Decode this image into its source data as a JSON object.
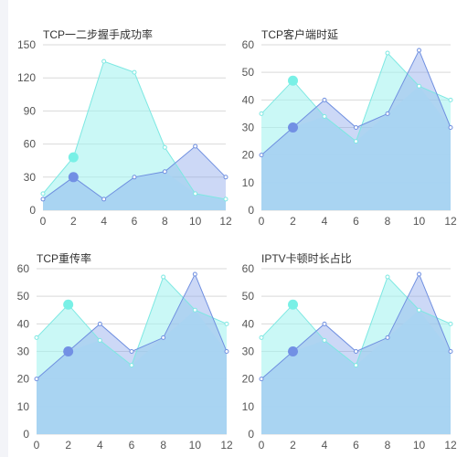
{
  "colors": {
    "series_a_fill": "#a7f3f0",
    "series_a_line": "#7de8e2",
    "series_a_marker": "#79f0e6",
    "series_b_fill": "#8fa8ec",
    "series_b_line": "#6f8fe0",
    "series_b_marker": "#7290e4",
    "overlap_fill": "#a8d3f2",
    "grid": "#d9d9d9",
    "tick_text": "#555555",
    "title_text": "#333333"
  },
  "chart_data": [
    {
      "type": "area",
      "title": "TCP一二步握手成功率",
      "x": [
        0,
        2,
        4,
        6,
        8,
        10,
        12
      ],
      "xticks": [
        "0",
        "2",
        "4",
        "6",
        "8",
        "10",
        "12"
      ],
      "yticks": [
        "0",
        "30",
        "60",
        "90",
        "120",
        "150"
      ],
      "ylim": [
        0,
        150
      ],
      "xlim": [
        0,
        12
      ],
      "grid": true,
      "series": [
        {
          "values": [
            15,
            48,
            135,
            125,
            57,
            15,
            10
          ]
        },
        {
          "values": [
            10,
            30,
            10,
            30,
            35,
            58,
            30
          ]
        }
      ],
      "highlight_index": 1
    },
    {
      "type": "area",
      "title": "TCP客户端时延",
      "x": [
        0,
        2,
        4,
        6,
        8,
        10,
        12
      ],
      "xticks": [
        "0",
        "2",
        "4",
        "6",
        "8",
        "10",
        "12"
      ],
      "yticks": [
        "0",
        "10",
        "20",
        "30",
        "40",
        "50",
        "60"
      ],
      "ylim": [
        0,
        60
      ],
      "xlim": [
        0,
        12
      ],
      "grid": true,
      "series": [
        {
          "values": [
            35,
            47,
            34,
            25,
            57,
            45,
            40
          ]
        },
        {
          "values": [
            20,
            30,
            40,
            30,
            35,
            58,
            30
          ]
        }
      ],
      "highlight_index": 1
    },
    {
      "type": "area",
      "title": "TCP重传率",
      "x": [
        0,
        2,
        4,
        6,
        8,
        10,
        12
      ],
      "xticks": [
        "0",
        "2",
        "4",
        "6",
        "8",
        "10",
        "12"
      ],
      "yticks": [
        "0",
        "10",
        "20",
        "30",
        "40",
        "50",
        "60"
      ],
      "ylim": [
        0,
        60
      ],
      "xlim": [
        0,
        12
      ],
      "grid": true,
      "series": [
        {
          "values": [
            35,
            47,
            34,
            25,
            57,
            45,
            40
          ]
        },
        {
          "values": [
            20,
            30,
            40,
            30,
            35,
            58,
            30
          ]
        }
      ],
      "highlight_index": 1
    },
    {
      "type": "area",
      "title": "IPTV卡顿时长占比",
      "x": [
        0,
        2,
        4,
        6,
        8,
        10,
        12
      ],
      "xticks": [
        "0",
        "2",
        "4",
        "6",
        "8",
        "10",
        "12"
      ],
      "yticks": [
        "0",
        "10",
        "20",
        "30",
        "40",
        "50",
        "60"
      ],
      "ylim": [
        0,
        60
      ],
      "xlim": [
        0,
        12
      ],
      "grid": true,
      "series": [
        {
          "values": [
            35,
            47,
            34,
            25,
            57,
            45,
            40
          ]
        },
        {
          "values": [
            20,
            30,
            40,
            30,
            35,
            58,
            30
          ]
        }
      ],
      "highlight_index": 1
    }
  ]
}
